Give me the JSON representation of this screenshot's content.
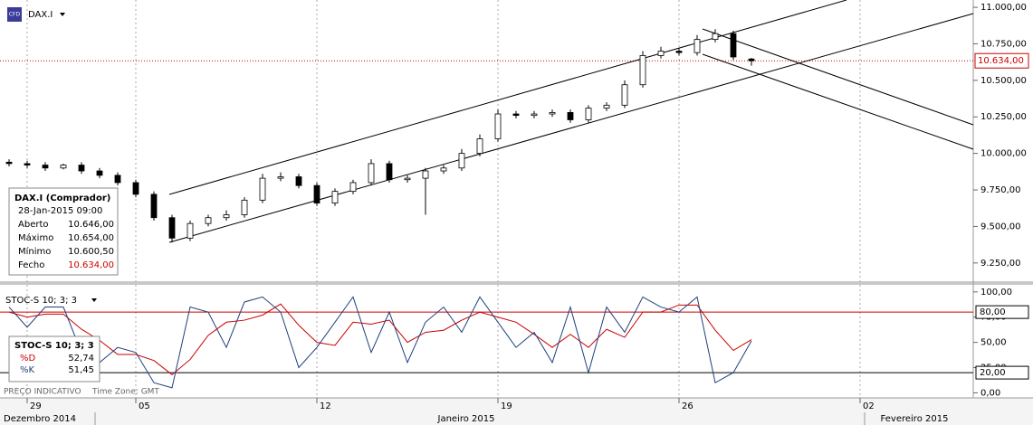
{
  "chart_data": [
    {
      "type": "candlestick",
      "title": "DAX.I",
      "open": [
        9940,
        9930,
        9920,
        9900,
        9920,
        9880,
        9850,
        9800,
        9720,
        9560,
        9420,
        9520,
        9560,
        9580,
        9680,
        9830,
        9840,
        9780,
        9660,
        9740,
        9800,
        9930,
        9820,
        9830,
        9880,
        9900,
        10000,
        10100,
        10270,
        10260,
        10270,
        10280,
        10230,
        10310,
        10330,
        10470,
        10670,
        10700,
        10690,
        10780,
        10820,
        10646
      ],
      "high": [
        9960,
        9950,
        9940,
        9930,
        9940,
        9900,
        9870,
        9820,
        9740,
        9580,
        9540,
        9580,
        9610,
        9700,
        9860,
        9870,
        9860,
        9800,
        9760,
        9820,
        9960,
        9950,
        9850,
        9900,
        9920,
        10030,
        10130,
        10300,
        10290,
        10290,
        10300,
        10300,
        10330,
        10350,
        10500,
        10700,
        10730,
        10720,
        10810,
        10850,
        10840,
        10654
      ],
      "low": [
        9910,
        9900,
        9880,
        9890,
        9860,
        9830,
        9780,
        9700,
        9540,
        9390,
        9400,
        9500,
        9540,
        9560,
        9660,
        9810,
        9760,
        9640,
        9640,
        9720,
        9780,
        9800,
        9800,
        9580,
        9860,
        9880,
        9980,
        10080,
        10240,
        10240,
        10250,
        10210,
        10210,
        10290,
        10310,
        10450,
        10650,
        10670,
        10670,
        10760,
        10640,
        10600.5
      ],
      "close": [
        9930,
        9920,
        9900,
        9920,
        9880,
        9850,
        9800,
        9720,
        9560,
        9420,
        9520,
        9560,
        9580,
        9680,
        9830,
        9840,
        9780,
        9660,
        9740,
        9800,
        9930,
        9820,
        9830,
        9880,
        9900,
        10000,
        10100,
        10270,
        10260,
        10270,
        10280,
        10230,
        10310,
        10330,
        10470,
        10670,
        10700,
        10690,
        10780,
        10820,
        10660,
        10634
      ],
      "up_color": "#ffffff",
      "down_color": "#000000",
      "ylim": [
        9125,
        11050
      ],
      "yticks": [
        {
          "value": 9250,
          "label": "9.250,00"
        },
        {
          "value": 9500,
          "label": "9.500,00"
        },
        {
          "value": 9750,
          "label": "9.750,00"
        },
        {
          "value": 10000,
          "label": "10.000,00"
        },
        {
          "value": 10250,
          "label": "10.250,00"
        },
        {
          "value": 10500,
          "label": "10.500,00"
        },
        {
          "value": 10750,
          "label": "10.750,00"
        },
        {
          "value": 11000,
          "label": "11.000,00"
        }
      ],
      "xlim": [
        -0.5,
        53.25
      ],
      "xticks": [
        {
          "value": 1,
          "label": "29"
        },
        {
          "value": 7,
          "label": "05"
        },
        {
          "value": 17,
          "label": "12"
        },
        {
          "value": 27,
          "label": "19"
        },
        {
          "value": 37,
          "label": "26"
        },
        {
          "value": 47,
          "label": "02"
        }
      ],
      "month_labels": [
        "Dezembro 2014",
        "Janeiro 2015",
        "Fevereiro 2015"
      ],
      "current_price": {
        "value": 10634,
        "label": "10.634,00"
      },
      "current_price_color": "#cc0000"
    },
    {
      "type": "line",
      "title": "STOC-S 10; 3; 3",
      "series": [
        {
          "name": "%D",
          "color": "#cc0000",
          "last_label": "52,74",
          "values": [
            80,
            75,
            78,
            78,
            63,
            52,
            38,
            38,
            32,
            18,
            33,
            57,
            70,
            72,
            77,
            88,
            67,
            50,
            47,
            70,
            68,
            72,
            50,
            60,
            62,
            72,
            80,
            75,
            70,
            58,
            45,
            58,
            45,
            63,
            55,
            80,
            80,
            87,
            87,
            62,
            42,
            52.74
          ]
        },
        {
          "name": "%K",
          "color": "#1f3f7a",
          "last_label": "51,45",
          "values": [
            85,
            65,
            85,
            85,
            40,
            30,
            45,
            40,
            10,
            5,
            85,
            80,
            45,
            90,
            95,
            80,
            25,
            45,
            70,
            95,
            40,
            80,
            30,
            70,
            85,
            60,
            95,
            70,
            45,
            60,
            30,
            85,
            20,
            85,
            60,
            95,
            85,
            80,
            95,
            10,
            20,
            51.45
          ]
        }
      ],
      "ylim": [
        -5,
        107
      ],
      "yticks": [
        {
          "value": 0,
          "label": "0,00"
        },
        {
          "value": 25,
          "label": "25,00"
        },
        {
          "value": 50,
          "label": "50,00"
        },
        {
          "value": 75,
          "label": "75,00"
        },
        {
          "value": 100,
          "label": "100,00"
        }
      ],
      "levels": [
        {
          "value": 80,
          "label": "80,00",
          "color": "#cc0000"
        },
        {
          "value": 20,
          "label": "20,00",
          "color": "#000000"
        }
      ]
    }
  ],
  "info_box": {
    "title": "DAX.I (Comprador)",
    "datetime": "28-Jan-2015 09:00",
    "rows": [
      {
        "label": "Aberto",
        "value": "10.646,00"
      },
      {
        "label": "Máximo",
        "value": "10.654,00"
      },
      {
        "label": "Mínimo",
        "value": "10.600,50"
      },
      {
        "label": "Fecho",
        "value": "10.634,00"
      }
    ]
  },
  "footer": "PREÇO INDICATIVO",
  "timezone": "Time Zone: GMT"
}
